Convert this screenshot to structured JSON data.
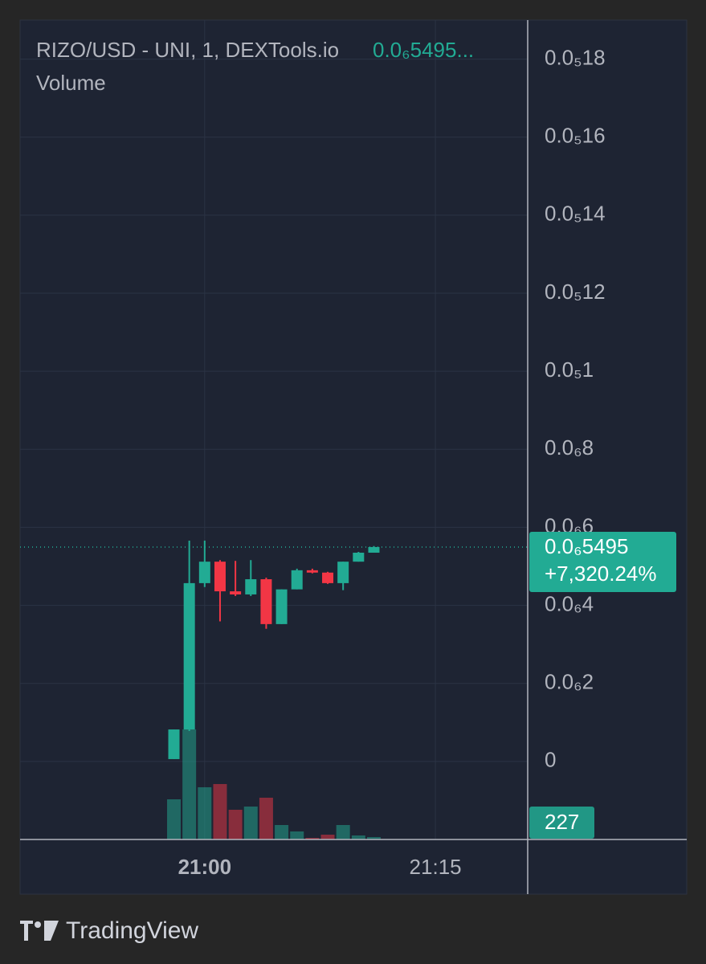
{
  "chart_data": {
    "type": "candlestick",
    "title": "RIZO/USD - UNI, 1, DEXTools.io",
    "title_price": "0.0₆5495...",
    "volume_label": "Volume",
    "brand": "TradingView",
    "up_color": "#22ab94",
    "down_color": "#f23645",
    "grid": true,
    "x": [
      "20:58",
      "20:59",
      "21:00",
      "21:01",
      "21:02",
      "21:03",
      "21:04",
      "21:05",
      "21:06",
      "21:07",
      "21:08",
      "21:09",
      "21:10",
      "21:11"
    ],
    "open": [
      6e-09,
      8.2e-08,
      4.57e-07,
      5.12e-07,
      4.36e-07,
      4.28e-07,
      4.67e-07,
      3.52e-07,
      4.41e-07,
      4.9e-07,
      4.84e-07,
      4.57e-07,
      5.12e-07,
      5.35e-07
    ],
    "high": [
      8.2e-08,
      5.66e-07,
      5.66e-07,
      5.16e-07,
      5.14e-07,
      5.16e-07,
      4.71e-07,
      4.41e-07,
      4.94e-07,
      4.94e-07,
      4.86e-07,
      5.12e-07,
      5.37e-07,
      5.52e-07
    ],
    "low": [
      6e-09,
      7.8e-08,
      4.47e-07,
      3.59e-07,
      4.24e-07,
      4.24e-07,
      3.4e-07,
      3.52e-07,
      4.41e-07,
      4.82e-07,
      4.55e-07,
      4.39e-07,
      5.12e-07,
      5.35e-07
    ],
    "close": [
      8.2e-08,
      4.57e-07,
      5.12e-07,
      4.36e-07,
      4.28e-07,
      4.67e-07,
      3.52e-07,
      4.41e-07,
      4.9e-07,
      4.84e-07,
      4.57e-07,
      5.12e-07,
      5.35e-07,
      5.495e-07
    ],
    "volume": [
      3775,
      10343,
      4908,
      5210,
      2794,
      3096,
      3926,
      1359,
      755,
      151,
      453,
      1359,
      378,
      227
    ],
    "volume_ylim": [
      0,
      77000
    ],
    "last_price": {
      "value": 5.495e-07,
      "label": "0.0₆5495"
    },
    "change": "+7,320.24%",
    "xlim": [
      "20:48",
      "21:21"
    ],
    "xticks": [
      "21:00",
      "21:15"
    ],
    "ylim": [
      -2e-07,
      1.9e-06
    ],
    "yticks": [
      {
        "value": 1.8e-06,
        "label": "0.0₅18"
      },
      {
        "value": 1.6e-06,
        "label": "0.0₅16"
      },
      {
        "value": 1.4e-06,
        "label": "0.0₅14"
      },
      {
        "value": 1.2e-06,
        "label": "0.0₅12"
      },
      {
        "value": 1e-06,
        "label": "0.0₅1"
      },
      {
        "value": 8e-07,
        "label": "0.0₆8"
      },
      {
        "value": 6e-07,
        "label": "0.0₆6"
      },
      {
        "value": 4e-07,
        "label": "0.0₆4"
      },
      {
        "value": 2e-07,
        "label": "0.0₆2"
      },
      0
    ]
  }
}
